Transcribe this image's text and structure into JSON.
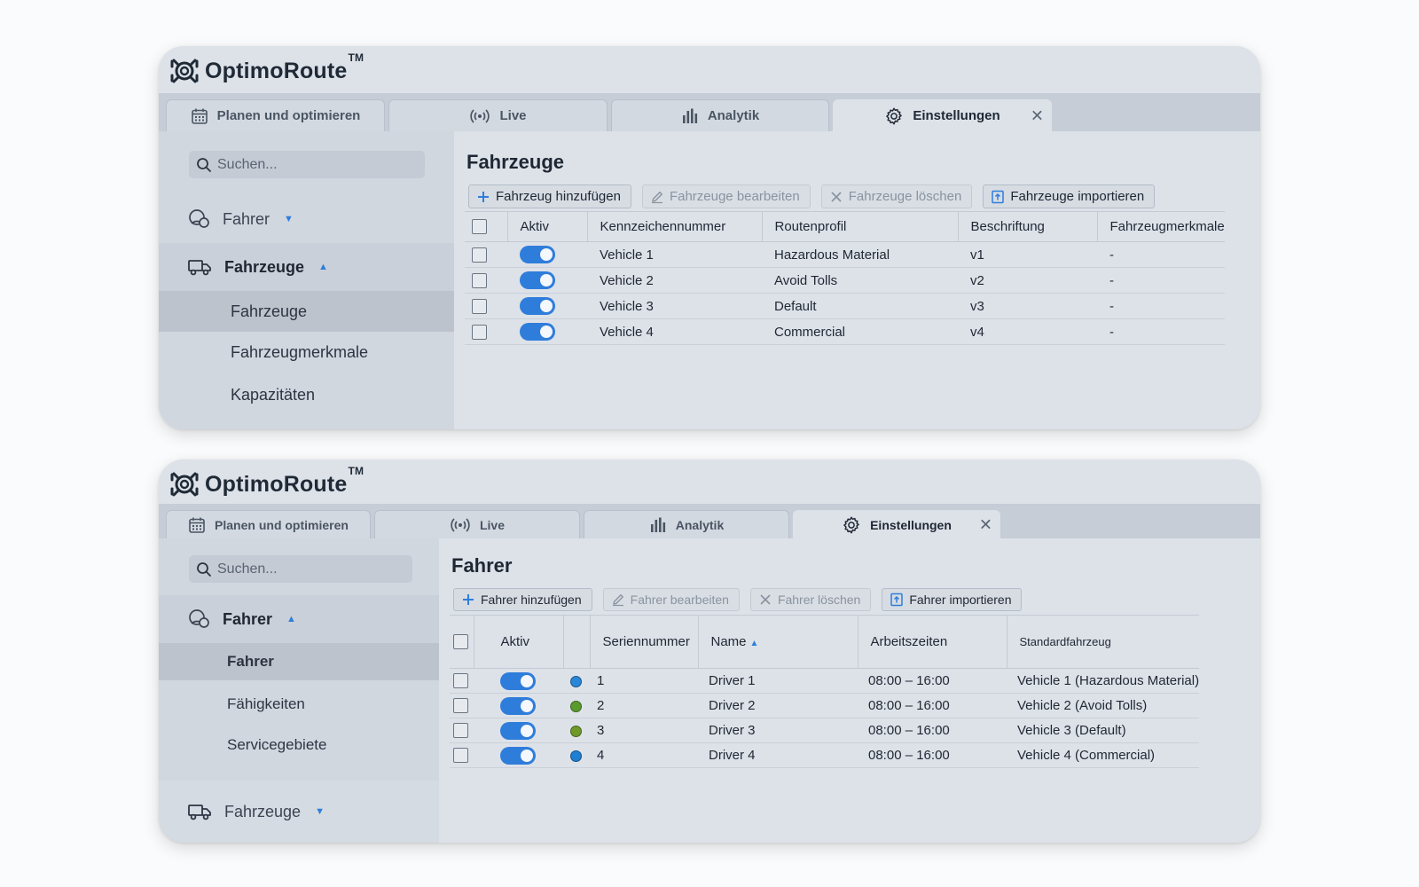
{
  "brand": {
    "name": "OptimoRoute",
    "tm": "TM"
  },
  "tabs": [
    {
      "label": "Planen und optimieren",
      "icon": "calendar-icon"
    },
    {
      "label": "Live",
      "icon": "broadcast-icon"
    },
    {
      "label": "Analytik",
      "icon": "bar-chart-icon"
    },
    {
      "label": "Einstellungen",
      "icon": "gear-icon",
      "active": true
    }
  ],
  "search_placeholder": "Suchen...",
  "panel1": {
    "nav": {
      "fahrer_group": "Fahrer",
      "fahrzeuge_group": "Fahrzeuge",
      "sub": [
        "Fahrzeuge",
        "Fahrzeugmerkmale",
        "Kapazitäten"
      ]
    },
    "title": "Fahrzeuge",
    "toolbar": {
      "add": "Fahrzeug hinzufügen",
      "edit": "Fahrzeuge bearbeiten",
      "delete": "Fahrzeuge löschen",
      "import": "Fahrzeuge importieren"
    },
    "columns": [
      "Aktiv",
      "Kennzeichennummer",
      "Routenprofil",
      "Beschriftung",
      "Fahrzeugmerkmale"
    ],
    "rows": [
      {
        "plate": "Vehicle 1",
        "profile": "Hazardous Material",
        "label": "v1",
        "features": "-"
      },
      {
        "plate": "Vehicle 2",
        "profile": "Avoid Tolls",
        "label": "v2",
        "features": "-"
      },
      {
        "plate": "Vehicle 3",
        "profile": "Default",
        "label": "v3",
        "features": "-"
      },
      {
        "plate": "Vehicle 4",
        "profile": "Commercial",
        "label": "v4",
        "features": "-"
      }
    ]
  },
  "panel2": {
    "nav": {
      "fahrer_group": "Fahrer",
      "sub": [
        "Fahrer",
        "Fähigkeiten",
        "Servicegebiete"
      ],
      "fahrzeuge_group": "Fahrzeuge"
    },
    "title": "Fahrer",
    "toolbar": {
      "add": "Fahrer hinzufügen",
      "edit": "Fahrer bearbeiten",
      "delete": "Fahrer löschen",
      "import": "Fahrer importieren"
    },
    "columns": [
      "Aktiv",
      "Seriennummer",
      "Name",
      "Arbeitszeiten",
      "Standardfahrzeug"
    ],
    "rows": [
      {
        "serial": "1",
        "name": "Driver 1",
        "hours": "08:00 – 16:00",
        "vehicle": "Vehicle 1 (Hazardous Material)",
        "color": "#2a86d6"
      },
      {
        "serial": "2",
        "name": "Driver 2",
        "hours": "08:00 – 16:00",
        "vehicle": "Vehicle 2 (Avoid Tolls)",
        "color": "#5b9a2c"
      },
      {
        "serial": "3",
        "name": "Driver 3",
        "hours": "08:00 – 16:00",
        "vehicle": "Vehicle 3 (Default)",
        "color": "#6f9a2a"
      },
      {
        "serial": "4",
        "name": "Driver 4",
        "hours": "08:00 – 16:00",
        "vehicle": "Vehicle 4 (Commercial)",
        "color": "#1f7fd1"
      }
    ]
  },
  "colors": {
    "accent": "#2f7ddb"
  }
}
